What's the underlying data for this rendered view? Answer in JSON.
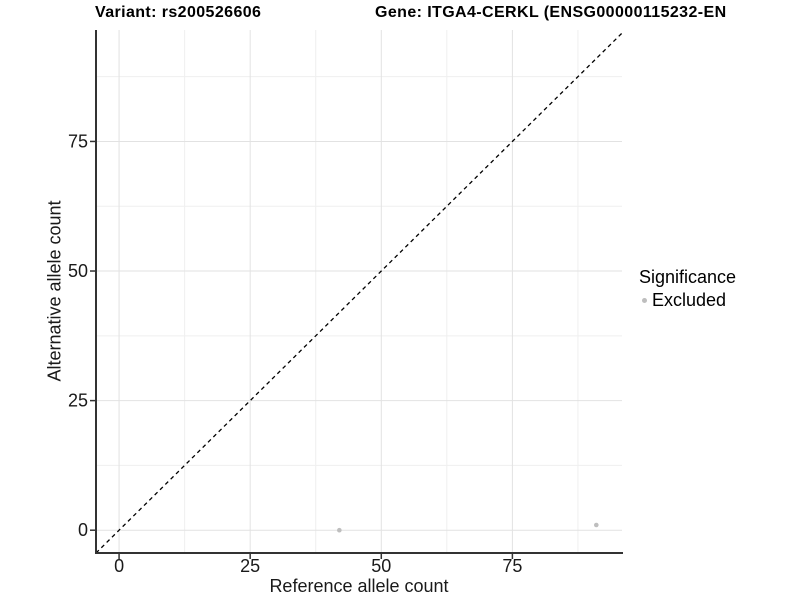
{
  "titles": {
    "left": "Variant: rs200526606",
    "right": "Gene: ITGA4-CERKL (ENSG00000115232-EN"
  },
  "legend": {
    "title": "Significance",
    "items": [
      {
        "label": "Excluded",
        "color": "#bebebe"
      }
    ]
  },
  "colors": {
    "point": "#bebebe",
    "grid_major": "#e2e2e2",
    "grid_minor": "#efefef",
    "axis_line": "#333333",
    "tick_mark": "#333333",
    "diagonal_line": "#000000"
  },
  "chart_data": {
    "type": "scatter",
    "title": "Variant: rs200526606 | Gene: ITGA4-CERKL (ENSG00000115232-EN",
    "xlabel": "Reference allele count",
    "ylabel": "Alternative allele count",
    "xlim": [
      -4.4,
      95.9
    ],
    "ylim": [
      -4.4,
      96.5
    ],
    "x_ticks": [
      0,
      25,
      50,
      75
    ],
    "y_ticks": [
      0,
      25,
      50,
      75
    ],
    "grid": "major+minor",
    "legend_position": "right",
    "reference_line": {
      "kind": "identity",
      "style": "dashed"
    },
    "series": [
      {
        "name": "Excluded",
        "color": "#bebebe",
        "points": [
          {
            "x": 42,
            "y": 0
          },
          {
            "x": 91,
            "y": 1
          }
        ]
      }
    ]
  }
}
